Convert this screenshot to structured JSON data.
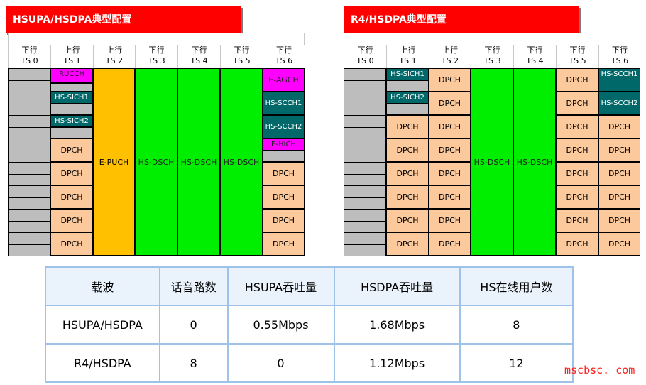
{
  "left_panel": {
    "title": "HSUPA/HSDPA典型配置",
    "headers": [
      {
        "dir": "下行",
        "ts": "TS 0"
      },
      {
        "dir": "上行",
        "ts": "TS 1"
      },
      {
        "dir": "上行",
        "ts": "TS 2"
      },
      {
        "dir": "下行",
        "ts": "TS 3"
      },
      {
        "dir": "下行",
        "ts": "TS 4"
      },
      {
        "dir": "下行",
        "ts": "TS 5"
      },
      {
        "dir": "下行",
        "ts": "TS 6"
      }
    ],
    "ts1": [
      "RUCCH",
      "HS-SICH1",
      "HS-SICH2",
      "DPCH",
      "DPCH",
      "DPCH",
      "DPCH",
      "DPCH"
    ],
    "ts2": "E-PUCH",
    "ts3": "HS-DSCH",
    "ts4": "HS-DSCH",
    "ts5": "HS-DSCH",
    "ts6": [
      "E-AGCH",
      "HS-SCCH1",
      "HS-SCCH2",
      "E-HICH",
      "DPCH",
      "DPCH",
      "DPCH",
      "DPCH",
      "DPCH"
    ]
  },
  "right_panel": {
    "title": "R4/HSDPA典型配置",
    "headers": [
      {
        "dir": "下行",
        "ts": "TS 0"
      },
      {
        "dir": "上行",
        "ts": "TS 1"
      },
      {
        "dir": "上行",
        "ts": "TS 2"
      },
      {
        "dir": "下行",
        "ts": "TS 3"
      },
      {
        "dir": "下行",
        "ts": "TS 4"
      },
      {
        "dir": "下行",
        "ts": "TS 5"
      },
      {
        "dir": "下行",
        "ts": "TS 6"
      }
    ],
    "ts1": [
      "HS-SICH1",
      "HS-SICH2",
      "DPCH",
      "DPCH",
      "DPCH",
      "DPCH",
      "DPCH",
      "DPCH"
    ],
    "ts2": [
      "DPCH",
      "DPCH",
      "DPCH",
      "DPCH",
      "DPCH",
      "DPCH",
      "DPCH",
      "DPCH"
    ],
    "ts3": "HS-DSCH",
    "ts4": "HS-DSCH",
    "ts5": [
      "DPCH",
      "DPCH",
      "DPCH",
      "DPCH",
      "DPCH",
      "DPCH",
      "DPCH",
      "DPCH"
    ],
    "ts6": [
      "HS-SCCH1",
      "HS-SCCH2",
      "DPCH",
      "DPCH",
      "DPCH",
      "DPCH",
      "DPCH",
      "DPCH"
    ]
  },
  "summary": {
    "headers": [
      "载波",
      "话音路数",
      "HSUPA吞吐量",
      "HSDPA吞吐量",
      "HS在线用户数"
    ],
    "rows": [
      [
        "HSUPA/HSDPA",
        "0",
        "0.55Mbps",
        "1.68Mbps",
        "8"
      ],
      [
        "R4/HSDPA",
        "8",
        "0",
        "1.12Mbps",
        "12"
      ]
    ]
  },
  "watermark": "mscbsc. com",
  "colors": {
    "title_bg": "#ff0000",
    "gray": "#bdbdbd",
    "peach": "#fbc99b",
    "magenta": "#ff00ff",
    "teal": "#006868",
    "orange": "#ffc000",
    "green": "#00ee00",
    "table_border": "#9fc3e8"
  }
}
